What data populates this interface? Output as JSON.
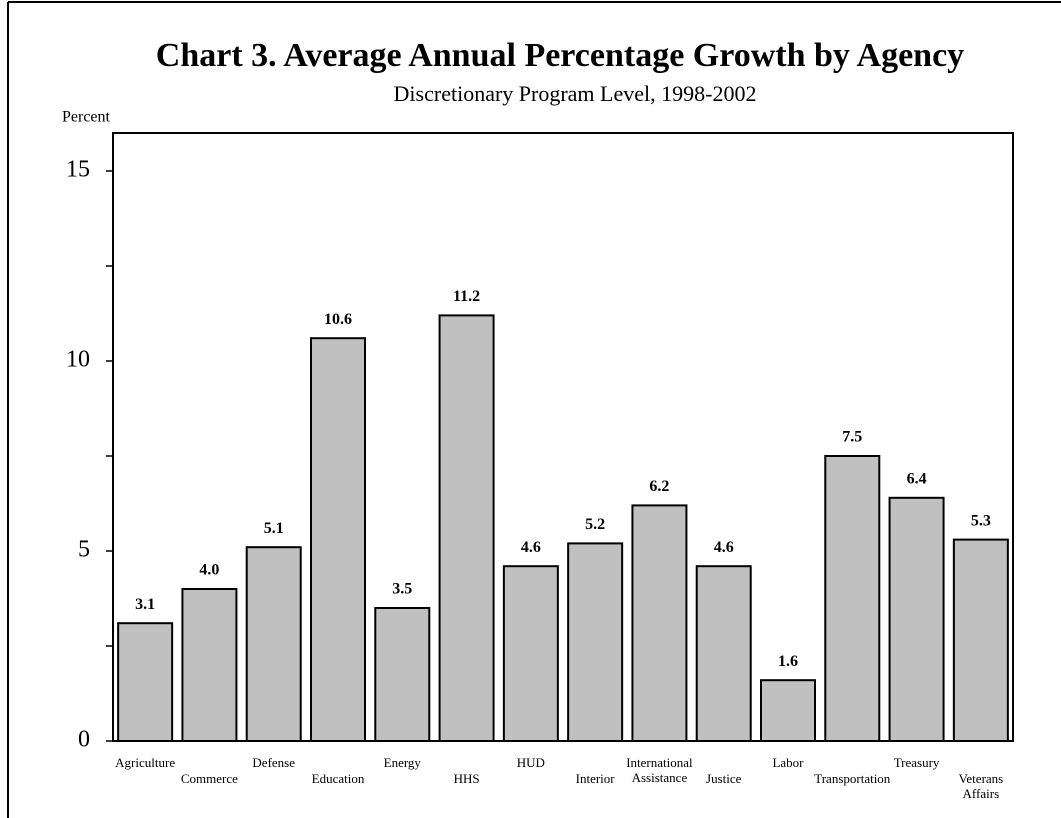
{
  "chart_data": {
    "type": "bar",
    "title": "Chart 3.  Average Annual Percentage Growth by Agency",
    "subtitle": "Discretionary Program Level, 1998-2002",
    "y_label": "Percent",
    "categories": [
      "Agriculture",
      "Commerce",
      "Defense",
      "Education",
      "Energy",
      "HHS",
      "HUD",
      "Interior",
      "International Assistance",
      "Justice",
      "Labor",
      "Transportation",
      "Treasury",
      "Veterans Affairs"
    ],
    "values": [
      3.1,
      4.0,
      5.1,
      10.6,
      3.5,
      11.2,
      4.6,
      5.2,
      6.2,
      4.6,
      1.6,
      7.5,
      6.4,
      5.3
    ],
    "value_labels": [
      "3.1",
      "4.0",
      "5.1",
      "10.6",
      "3.5",
      "11.2",
      "4.6",
      "5.2",
      "6.2",
      "4.6",
      "1.6",
      "7.5",
      "6.4",
      "5.3"
    ],
    "color": "#c0c0c0",
    "ylim": [
      0,
      16
    ],
    "yticks": [
      0,
      5,
      10,
      15
    ],
    "minor_yticks": [
      2.5,
      7.5,
      12.5
    ],
    "grid": false
  }
}
